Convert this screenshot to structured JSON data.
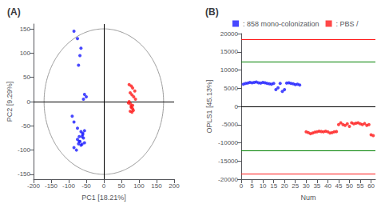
{
  "chart_data": [
    {
      "type": "scatter",
      "title": "(A)",
      "xlabel": "PC1 [18.21%]",
      "ylabel": "PC2 [9.29%]",
      "xlim": [
        -200,
        200
      ],
      "ylim": [
        -160,
        160
      ],
      "xticks": [
        -200,
        -150,
        -100,
        -50,
        0,
        50,
        100,
        150,
        200
      ],
      "yticks": [
        -150,
        -100,
        -50,
        0,
        50,
        100,
        150
      ],
      "grid": false,
      "reference_ellipse": {
        "rx": 170,
        "ry": 150,
        "color": "#999999"
      },
      "hlines": [
        {
          "value": 0,
          "color": "#000000"
        }
      ],
      "vlines": [
        {
          "value": 0,
          "color": "#000000"
        }
      ],
      "series": [
        {
          "color": "#1a1aff",
          "x": [
            -85,
            -75,
            -65,
            -68,
            -72,
            -55,
            -50,
            -58,
            -90,
            -85,
            -75,
            -65,
            -60,
            -70,
            -75,
            -68,
            -72,
            -65,
            -62,
            -55,
            -85,
            -78,
            -70,
            -62,
            -58,
            -60,
            -55
          ],
          "y": [
            145,
            130,
            110,
            95,
            75,
            15,
            10,
            5,
            -30,
            -42,
            -55,
            -62,
            -68,
            -72,
            -78,
            -82,
            -87,
            -90,
            -88,
            -85,
            -95,
            -100,
            -82,
            -72,
            -75,
            -65,
            -60
          ]
        },
        {
          "color": "#ff1a1a",
          "x": [
            72,
            78,
            82,
            88,
            75,
            80,
            85,
            90,
            72,
            76,
            78,
            82,
            75,
            80,
            84,
            78,
            82,
            70
          ],
          "y": [
            35,
            32,
            28,
            22,
            18,
            14,
            10,
            5,
            0,
            -5,
            -10,
            -15,
            -20,
            -22,
            -18,
            -12,
            -8,
            -3
          ]
        }
      ]
    },
    {
      "type": "scatter",
      "title": "(B)",
      "xlabel": "Num",
      "ylabel": "OPLS1 [45.13%]",
      "xlim": [
        0,
        62
      ],
      "ylim": [
        -20000,
        20000
      ],
      "xticks": [
        0,
        5,
        10,
        15,
        20,
        25,
        30,
        35,
        40,
        45,
        50,
        55,
        60
      ],
      "yticks": [
        -20000,
        -15000,
        -10000,
        -5000,
        0,
        5000,
        10000,
        15000,
        20000
      ],
      "grid": false,
      "legend": "top",
      "hlines": [
        {
          "value": 18500,
          "color": "#ff1a1a"
        },
        {
          "value": -18500,
          "color": "#ff1a1a"
        },
        {
          "value": 12200,
          "color": "#008000"
        },
        {
          "value": -12200,
          "color": "#008000"
        },
        {
          "value": 0,
          "color": "#000000"
        }
      ],
      "series": [
        {
          "name": ": 858 mono-colonization",
          "color": "#1a1aff",
          "x": [
            1,
            2,
            3,
            4,
            5,
            6,
            7,
            8,
            9,
            10,
            11,
            12,
            13,
            14,
            15,
            16,
            17,
            18,
            19,
            20,
            21,
            22,
            23,
            24,
            25,
            26,
            27
          ],
          "y": [
            6100,
            6300,
            6400,
            6600,
            6500,
            6600,
            6700,
            6500,
            6400,
            6600,
            6500,
            6300,
            6200,
            6100,
            6300,
            4600,
            5100,
            6300,
            4100,
            4600,
            6400,
            6500,
            6300,
            6200,
            6000,
            6100,
            5900
          ]
        },
        {
          "name": ": PBS /",
          "color": "#ff1a1a",
          "x": [
            30,
            31,
            32,
            33,
            34,
            35,
            36,
            37,
            38,
            39,
            40,
            41,
            42,
            43,
            44,
            45,
            46,
            47,
            48,
            49,
            50,
            51,
            52,
            53,
            54,
            55,
            56,
            57,
            58,
            59,
            60,
            61
          ],
          "y": [
            -7000,
            -7200,
            -7500,
            -7300,
            -7100,
            -7000,
            -6800,
            -6900,
            -7000,
            -6800,
            -7000,
            -7300,
            -7200,
            -7000,
            -6900,
            -5000,
            -4500,
            -5000,
            -5200,
            -4800,
            -5500,
            -4500,
            -4800,
            -4600,
            -4500,
            -4800,
            -5000,
            -4700,
            -5200,
            -5000,
            -7800,
            -8000
          ]
        }
      ]
    }
  ]
}
